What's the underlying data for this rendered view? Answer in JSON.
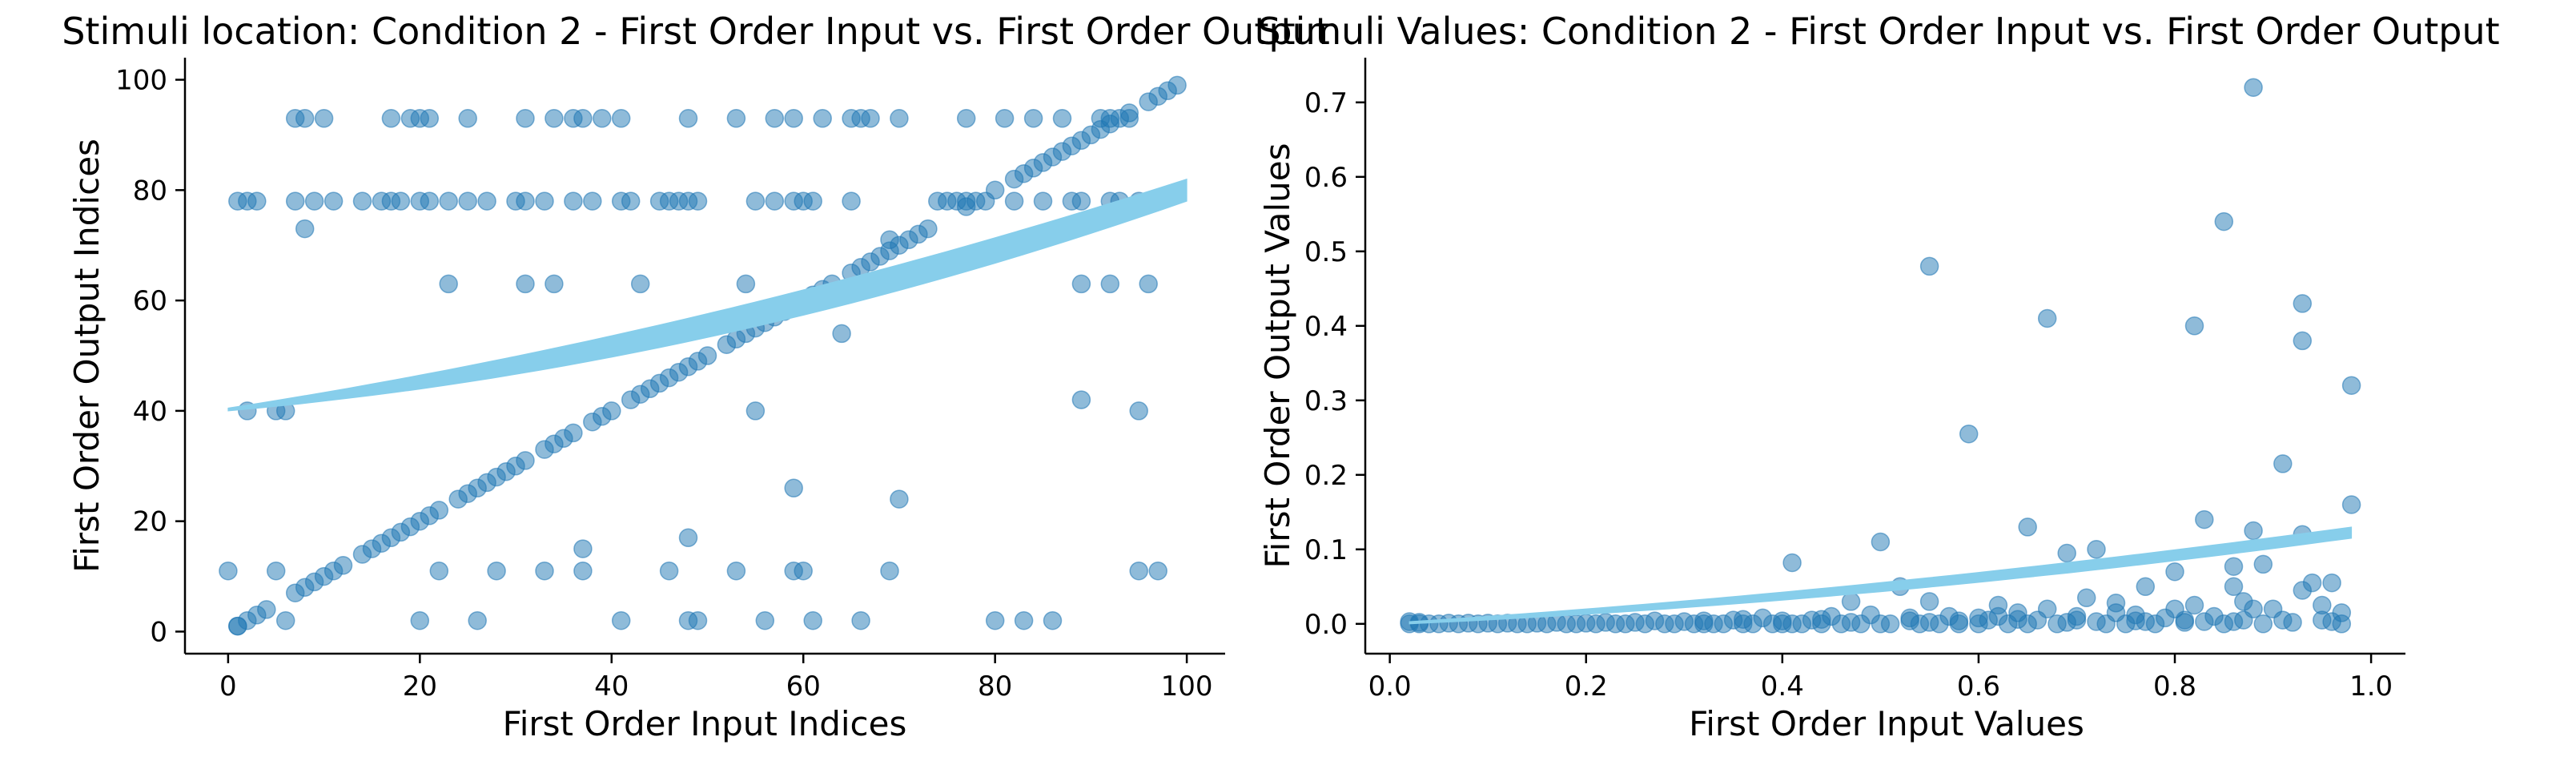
{
  "chart_data": [
    {
      "type": "scatter",
      "title": "Stimuli location: Condition 2 - First Order Input vs. First Order Output",
      "xlabel": "First Order Input Indices",
      "ylabel": "First Order Output Indices",
      "xlim": [
        -4.5,
        104
      ],
      "ylim": [
        -4,
        104
      ],
      "xticks": [
        0,
        20,
        40,
        60,
        80,
        100
      ],
      "yticks": [
        0,
        20,
        40,
        60,
        80,
        100
      ],
      "grid": false,
      "point_color": "#1f77b4",
      "point_alpha": 0.5,
      "band_color": "#87ceeb",
      "trend_band": {
        "x": [
          0,
          100
        ],
        "lower": [
          40,
          78
        ],
        "upper": [
          40.5,
          82
        ],
        "curvature": 0.6
      },
      "diagonal_points": [
        [
          1,
          1
        ],
        [
          2,
          2
        ],
        [
          3,
          3
        ],
        [
          4,
          4
        ],
        [
          7,
          7
        ],
        [
          8,
          8
        ],
        [
          9,
          9
        ],
        [
          10,
          10
        ],
        [
          11,
          11
        ],
        [
          12,
          12
        ],
        [
          14,
          14
        ],
        [
          15,
          15
        ],
        [
          16,
          16
        ],
        [
          17,
          17
        ],
        [
          18,
          18
        ],
        [
          19,
          19
        ],
        [
          20,
          20
        ],
        [
          21,
          21
        ],
        [
          22,
          22
        ],
        [
          24,
          24
        ],
        [
          25,
          25
        ],
        [
          26,
          26
        ],
        [
          27,
          27
        ],
        [
          28,
          28
        ],
        [
          29,
          29
        ],
        [
          30,
          30
        ],
        [
          31,
          31
        ],
        [
          33,
          33
        ],
        [
          34,
          34
        ],
        [
          35,
          35
        ],
        [
          36,
          36
        ],
        [
          38,
          38
        ],
        [
          39,
          39
        ],
        [
          40,
          40
        ],
        [
          42,
          42
        ],
        [
          43,
          43
        ],
        [
          44,
          44
        ],
        [
          45,
          45
        ],
        [
          46,
          46
        ],
        [
          47,
          47
        ],
        [
          48,
          48
        ],
        [
          49,
          49
        ],
        [
          50,
          50
        ],
        [
          52,
          52
        ],
        [
          53,
          53
        ],
        [
          54,
          54
        ],
        [
          55,
          55
        ],
        [
          56,
          56
        ],
        [
          57,
          57
        ],
        [
          58,
          58
        ],
        [
          59,
          59
        ],
        [
          60,
          60
        ],
        [
          61,
          61
        ],
        [
          62,
          62
        ],
        [
          63,
          63
        ],
        [
          65,
          65
        ],
        [
          66,
          66
        ],
        [
          67,
          67
        ],
        [
          68,
          68
        ],
        [
          69,
          69
        ],
        [
          70,
          70
        ],
        [
          71,
          71
        ],
        [
          72,
          72
        ],
        [
          73,
          73
        ],
        [
          77,
          77
        ],
        [
          78,
          78
        ],
        [
          80,
          80
        ],
        [
          82,
          82
        ],
        [
          83,
          83
        ],
        [
          84,
          84
        ],
        [
          85,
          85
        ],
        [
          86,
          86
        ],
        [
          87,
          87
        ],
        [
          88,
          88
        ],
        [
          89,
          89
        ],
        [
          90,
          90
        ],
        [
          91,
          91
        ],
        [
          92,
          92
        ],
        [
          93,
          93
        ],
        [
          94,
          94
        ],
        [
          96,
          96
        ],
        [
          97,
          97
        ],
        [
          98,
          98
        ],
        [
          99,
          99
        ]
      ],
      "scatter_points": [
        [
          7,
          93
        ],
        [
          8,
          93
        ],
        [
          10,
          93
        ],
        [
          17,
          93
        ],
        [
          19,
          93
        ],
        [
          20,
          93
        ],
        [
          21,
          93
        ],
        [
          25,
          93
        ],
        [
          31,
          93
        ],
        [
          34,
          93
        ],
        [
          36,
          93
        ],
        [
          37,
          93
        ],
        [
          39,
          93
        ],
        [
          41,
          93
        ],
        [
          48,
          93
        ],
        [
          53,
          93
        ],
        [
          57,
          93
        ],
        [
          59,
          93
        ],
        [
          62,
          93
        ],
        [
          65,
          93
        ],
        [
          66,
          93
        ],
        [
          67,
          93
        ],
        [
          70,
          93
        ],
        [
          77,
          93
        ],
        [
          81,
          93
        ],
        [
          84,
          93
        ],
        [
          87,
          93
        ],
        [
          91,
          93
        ],
        [
          92,
          93
        ],
        [
          94,
          93
        ],
        [
          1,
          78
        ],
        [
          2,
          78
        ],
        [
          3,
          78
        ],
        [
          7,
          78
        ],
        [
          9,
          78
        ],
        [
          11,
          78
        ],
        [
          14,
          78
        ],
        [
          16,
          78
        ],
        [
          17,
          78
        ],
        [
          18,
          78
        ],
        [
          20,
          78
        ],
        [
          21,
          78
        ],
        [
          23,
          78
        ],
        [
          25,
          78
        ],
        [
          27,
          78
        ],
        [
          30,
          78
        ],
        [
          31,
          78
        ],
        [
          33,
          78
        ],
        [
          36,
          78
        ],
        [
          38,
          78
        ],
        [
          41,
          78
        ],
        [
          42,
          78
        ],
        [
          45,
          78
        ],
        [
          46,
          78
        ],
        [
          47,
          78
        ],
        [
          48,
          78
        ],
        [
          49,
          78
        ],
        [
          55,
          78
        ],
        [
          57,
          78
        ],
        [
          59,
          78
        ],
        [
          60,
          78
        ],
        [
          61,
          78
        ],
        [
          65,
          78
        ],
        [
          74,
          78
        ],
        [
          75,
          78
        ],
        [
          76,
          78
        ],
        [
          77,
          78
        ],
        [
          79,
          78
        ],
        [
          82,
          78
        ],
        [
          85,
          78
        ],
        [
          88,
          78
        ],
        [
          89,
          78
        ],
        [
          92,
          78
        ],
        [
          93,
          78
        ],
        [
          95,
          78
        ],
        [
          8,
          73
        ],
        [
          23,
          63
        ],
        [
          31,
          63
        ],
        [
          34,
          63
        ],
        [
          43,
          63
        ],
        [
          54,
          63
        ],
        [
          89,
          63
        ],
        [
          92,
          63
        ],
        [
          96,
          63
        ],
        [
          41,
          52
        ],
        [
          64,
          54
        ],
        [
          69,
          71
        ],
        [
          2,
          40
        ],
        [
          5,
          40
        ],
        [
          6,
          40
        ],
        [
          55,
          40
        ],
        [
          89,
          42
        ],
        [
          95,
          40
        ],
        [
          59,
          26
        ],
        [
          70,
          24
        ],
        [
          48,
          17
        ],
        [
          37,
          15
        ],
        [
          0,
          11
        ],
        [
          5,
          11
        ],
        [
          22,
          11
        ],
        [
          28,
          11
        ],
        [
          33,
          11
        ],
        [
          37,
          11
        ],
        [
          46,
          11
        ],
        [
          53,
          11
        ],
        [
          59,
          11
        ],
        [
          60,
          11
        ],
        [
          69,
          11
        ],
        [
          95,
          11
        ],
        [
          97,
          11
        ],
        [
          1,
          1
        ],
        [
          6,
          2
        ],
        [
          20,
          2
        ],
        [
          26,
          2
        ],
        [
          41,
          2
        ],
        [
          48,
          2
        ],
        [
          49,
          2
        ],
        [
          56,
          2
        ],
        [
          61,
          2
        ],
        [
          66,
          2
        ],
        [
          80,
          2
        ],
        [
          83,
          2
        ],
        [
          86,
          2
        ]
      ]
    },
    {
      "type": "scatter",
      "title": "Stimuli Values: Condition 2 - First Order Input vs. First Order Output",
      "xlabel": "First Order Input Values",
      "ylabel": "First Order Output Values",
      "xlim": [
        -0.025,
        1.035
      ],
      "ylim": [
        -0.04,
        0.76
      ],
      "xticks": [
        0.0,
        0.2,
        0.4,
        0.6,
        0.8,
        1.0
      ],
      "xtick_labels": [
        "0.0",
        "0.2",
        "0.4",
        "0.6",
        "0.8",
        "1.0"
      ],
      "yticks": [
        0.0,
        0.1,
        0.2,
        0.3,
        0.4,
        0.5,
        0.6,
        0.7
      ],
      "ytick_labels": [
        "0.0",
        "0.1",
        "0.2",
        "0.3",
        "0.4",
        "0.5",
        "0.6",
        "0.7"
      ],
      "grid": false,
      "point_color": "#1f77b4",
      "point_alpha": 0.5,
      "band_color": "#87ceeb",
      "trend_band": {
        "x": [
          0.02,
          0.98
        ],
        "lower": [
          0.0,
          0.115
        ],
        "upper": [
          0.003,
          0.13
        ],
        "curvature": 0.5
      },
      "scatter_points": [
        [
          0.88,
          0.72
        ],
        [
          0.85,
          0.54
        ],
        [
          0.55,
          0.48
        ],
        [
          0.67,
          0.41
        ],
        [
          0.93,
          0.43
        ],
        [
          0.82,
          0.4
        ],
        [
          0.93,
          0.38
        ],
        [
          0.98,
          0.32
        ],
        [
          0.59,
          0.255
        ],
        [
          0.91,
          0.215
        ],
        [
          0.98,
          0.16
        ],
        [
          0.83,
          0.14
        ],
        [
          0.65,
          0.13
        ],
        [
          0.88,
          0.125
        ],
        [
          0.93,
          0.12
        ],
        [
          0.5,
          0.11
        ],
        [
          0.72,
          0.1
        ],
        [
          0.69,
          0.095
        ],
        [
          0.41,
          0.082
        ],
        [
          0.86,
          0.077
        ],
        [
          0.89,
          0.08
        ],
        [
          0.8,
          0.07
        ],
        [
          0.94,
          0.055
        ],
        [
          0.96,
          0.055
        ],
        [
          0.86,
          0.05
        ],
        [
          0.93,
          0.045
        ],
        [
          0.77,
          0.05
        ],
        [
          0.52,
          0.05
        ],
        [
          0.47,
          0.03
        ],
        [
          0.55,
          0.03
        ],
        [
          0.62,
          0.025
        ],
        [
          0.74,
          0.028
        ],
        [
          0.8,
          0.02
        ],
        [
          0.82,
          0.025
        ],
        [
          0.87,
          0.03
        ],
        [
          0.88,
          0.02
        ],
        [
          0.9,
          0.02
        ],
        [
          0.95,
          0.025
        ],
        [
          0.97,
          0.015
        ],
        [
          0.71,
          0.035
        ],
        [
          0.67,
          0.02
        ],
        [
          0.62,
          0.01
        ],
        [
          0.64,
          0.015
        ],
        [
          0.7,
          0.01
        ],
        [
          0.74,
          0.015
        ],
        [
          0.76,
          0.012
        ],
        [
          0.79,
          0.008
        ],
        [
          0.84,
          0.01
        ],
        [
          0.66,
          0.005
        ],
        [
          0.61,
          0.005
        ],
        [
          0.57,
          0.01
        ],
        [
          0.53,
          0.008
        ],
        [
          0.49,
          0.012
        ],
        [
          0.45,
          0.01
        ],
        [
          0.43,
          0.005
        ],
        [
          0.38,
          0.008
        ],
        [
          0.35,
          0.005
        ],
        [
          0.3,
          0.003
        ],
        [
          0.27,
          0.004
        ],
        [
          0.25,
          0.002
        ],
        [
          0.22,
          0.002
        ],
        [
          0.2,
          0.001
        ],
        [
          0.17,
          0.002
        ],
        [
          0.15,
          0.001
        ],
        [
          0.12,
          0.001
        ],
        [
          0.1,
          0.001
        ],
        [
          0.08,
          0.001
        ],
        [
          0.06,
          0.001
        ],
        [
          0.05,
          0.0
        ],
        [
          0.04,
          0.0
        ],
        [
          0.03,
          0.0
        ],
        [
          0.02,
          0.0
        ],
        [
          0.02,
          0.003
        ],
        [
          0.03,
          0.002
        ],
        [
          0.07,
          0.0
        ],
        [
          0.09,
          0.0
        ],
        [
          0.11,
          0.0
        ],
        [
          0.13,
          0.0
        ],
        [
          0.14,
          0.0
        ],
        [
          0.16,
          0.0
        ],
        [
          0.18,
          0.0
        ],
        [
          0.19,
          0.0
        ],
        [
          0.21,
          0.0
        ],
        [
          0.23,
          0.0
        ],
        [
          0.24,
          0.0
        ],
        [
          0.26,
          0.0
        ],
        [
          0.28,
          0.0
        ],
        [
          0.29,
          0.0
        ],
        [
          0.31,
          0.0
        ],
        [
          0.32,
          0.0
        ],
        [
          0.33,
          0.0
        ],
        [
          0.34,
          0.0
        ],
        [
          0.36,
          0.0
        ],
        [
          0.37,
          0.0
        ],
        [
          0.39,
          0.0
        ],
        [
          0.4,
          0.0
        ],
        [
          0.41,
          0.0
        ],
        [
          0.42,
          0.0
        ],
        [
          0.44,
          0.0
        ],
        [
          0.46,
          0.0
        ],
        [
          0.48,
          0.0
        ],
        [
          0.5,
          0.0
        ],
        [
          0.51,
          0.0
        ],
        [
          0.54,
          0.0
        ],
        [
          0.56,
          0.0
        ],
        [
          0.58,
          0.0
        ],
        [
          0.6,
          0.0
        ],
        [
          0.63,
          0.0
        ],
        [
          0.65,
          0.0
        ],
        [
          0.68,
          0.0
        ],
        [
          0.69,
          0.002
        ],
        [
          0.72,
          0.003
        ],
        [
          0.73,
          0.0
        ],
        [
          0.75,
          0.0
        ],
        [
          0.77,
          0.003
        ],
        [
          0.78,
          0.0
        ],
        [
          0.81,
          0.005
        ],
        [
          0.83,
          0.003
        ],
        [
          0.85,
          0.0
        ],
        [
          0.86,
          0.003
        ],
        [
          0.87,
          0.005
        ],
        [
          0.89,
          0.0
        ],
        [
          0.91,
          0.005
        ],
        [
          0.92,
          0.002
        ],
        [
          0.95,
          0.005
        ],
        [
          0.96,
          0.003
        ],
        [
          0.97,
          0.0
        ],
        [
          0.55,
          0.002
        ],
        [
          0.58,
          0.004
        ],
        [
          0.4,
          0.004
        ],
        [
          0.44,
          0.006
        ],
        [
          0.47,
          0.002
        ],
        [
          0.36,
          0.006
        ],
        [
          0.32,
          0.004
        ],
        [
          0.6,
          0.008
        ],
        [
          0.64,
          0.006
        ],
        [
          0.7,
          0.005
        ],
        [
          0.76,
          0.004
        ],
        [
          0.81,
          0.002
        ],
        [
          0.53,
          0.004
        ]
      ]
    }
  ]
}
